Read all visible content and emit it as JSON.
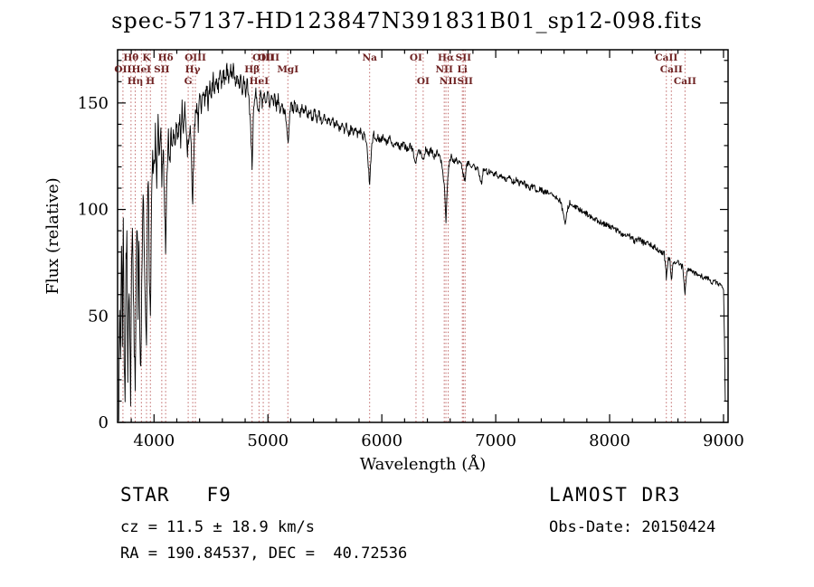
{
  "annotations": {
    "class_label": "STAR   F9",
    "cz": "cz = 11.5 ± 18.9 km/s",
    "coords": "RA = 190.84537, DEC =  40.72536",
    "survey": "LAMOST DR3",
    "obs_date": "Obs-Date: 20150424"
  },
  "chart_data": {
    "type": "line",
    "title": "spec-57137-HD123847N391831B01_sp12-098.fits",
    "xlabel": "Wavelength (Å)",
    "ylabel": "Flux (relative)",
    "xlim": [
      3680,
      9040
    ],
    "ylim": [
      0,
      175
    ],
    "xticks": [
      4000,
      5000,
      6000,
      7000,
      8000,
      9000
    ],
    "yticks": [
      0,
      50,
      100,
      150
    ],
    "x_minor_step": 200,
    "y_minor_step": 10,
    "grid": false,
    "legend": "none",
    "line_color": "#000000",
    "marker_color": "#c06868",
    "marker_label_color": "#6e2222",
    "spectral_lines": [
      {
        "wl": 3727,
        "label": "OII",
        "row": 1
      },
      {
        "wl": 3798,
        "label": "Hθ",
        "row": 0
      },
      {
        "wl": 3835,
        "label": "Hη",
        "row": 2
      },
      {
        "wl": 3889,
        "label": "HeI",
        "row": 1
      },
      {
        "wl": 3934,
        "label": "K",
        "row": 0
      },
      {
        "wl": 3968,
        "label": "H",
        "row": 2
      },
      {
        "wl": 4068,
        "label": "SII",
        "row": 1
      },
      {
        "wl": 4102,
        "label": "Hδ",
        "row": 0
      },
      {
        "wl": 4300,
        "label": "G",
        "row": 2
      },
      {
        "wl": 4340,
        "label": "Hγ",
        "row": 1
      },
      {
        "wl": 4363,
        "label": "OIII",
        "row": 0
      },
      {
        "wl": 4861,
        "label": "Hβ",
        "row": 1
      },
      {
        "wl": 4922,
        "label": "HeI",
        "row": 2
      },
      {
        "wl": 4959,
        "label": "OIII",
        "row": 0
      },
      {
        "wl": 5007,
        "label": "OIII",
        "row": 0
      },
      {
        "wl": 5175,
        "label": "MgI",
        "row": 1
      },
      {
        "wl": 5893,
        "label": "Na",
        "row": 0
      },
      {
        "wl": 6300,
        "label": "OI",
        "row": 0
      },
      {
        "wl": 6363,
        "label": "OI",
        "row": 2
      },
      {
        "wl": 6548,
        "label": "NII",
        "row": 1
      },
      {
        "wl": 6563,
        "label": "Hα",
        "row": 0
      },
      {
        "wl": 6583,
        "label": "NII",
        "row": 2
      },
      {
        "wl": 6707,
        "label": "Li",
        "row": 1
      },
      {
        "wl": 6716,
        "label": "SII",
        "row": 0
      },
      {
        "wl": 6731,
        "label": "SII",
        "row": 2
      },
      {
        "wl": 8498,
        "label": "CaII",
        "row": 0
      },
      {
        "wl": 8542,
        "label": "CaII",
        "row": 1
      },
      {
        "wl": 8662,
        "label": "CaII",
        "row": 2
      }
    ],
    "noise_profile": [
      [
        3690,
        9
      ],
      [
        3960,
        7
      ],
      [
        4300,
        5
      ],
      [
        4700,
        3
      ],
      [
        5300,
        2.2
      ],
      [
        6000,
        1.8
      ],
      [
        6800,
        1.4
      ],
      [
        7600,
        1.3
      ],
      [
        8300,
        1.5
      ],
      [
        9015,
        1.2
      ]
    ],
    "spectrum": [
      [
        3690,
        8
      ],
      [
        3698,
        55
      ],
      [
        3706,
        25
      ],
      [
        3714,
        90
      ],
      [
        3722,
        40
      ],
      [
        3730,
        100
      ],
      [
        3738,
        30
      ],
      [
        3746,
        10
      ],
      [
        3754,
        75
      ],
      [
        3762,
        95
      ],
      [
        3770,
        20
      ],
      [
        3778,
        60
      ],
      [
        3786,
        45
      ],
      [
        3794,
        15
      ],
      [
        3802,
        70
      ],
      [
        3810,
        90
      ],
      [
        3818,
        60
      ],
      [
        3826,
        35
      ],
      [
        3835,
        12
      ],
      [
        3844,
        78
      ],
      [
        3852,
        95
      ],
      [
        3860,
        55
      ],
      [
        3868,
        85
      ],
      [
        3876,
        40
      ],
      [
        3884,
        20
      ],
      [
        3892,
        65
      ],
      [
        3900,
        95
      ],
      [
        3908,
        105
      ],
      [
        3916,
        75
      ],
      [
        3924,
        55
      ],
      [
        3934,
        40
      ],
      [
        3942,
        100
      ],
      [
        3950,
        115
      ],
      [
        3958,
        70
      ],
      [
        3968,
        45
      ],
      [
        3978,
        105
      ],
      [
        3988,
        125
      ],
      [
        4000,
        118
      ],
      [
        4012,
        135
      ],
      [
        4024,
        112
      ],
      [
        4036,
        140
      ],
      [
        4048,
        122
      ],
      [
        4060,
        132
      ],
      [
        4068,
        115
      ],
      [
        4080,
        128
      ],
      [
        4090,
        110
      ],
      [
        4102,
        78
      ],
      [
        4114,
        118
      ],
      [
        4126,
        135
      ],
      [
        4138,
        122
      ],
      [
        4150,
        140
      ],
      [
        4162,
        126
      ],
      [
        4174,
        138
      ],
      [
        4186,
        128
      ],
      [
        4198,
        142
      ],
      [
        4210,
        132
      ],
      [
        4222,
        145
      ],
      [
        4234,
        134
      ],
      [
        4246,
        148
      ],
      [
        4258,
        136
      ],
      [
        4270,
        150
      ],
      [
        4282,
        140
      ],
      [
        4294,
        128
      ],
      [
        4306,
        135
      ],
      [
        4318,
        142
      ],
      [
        4330,
        120
      ],
      [
        4340,
        104
      ],
      [
        4352,
        132
      ],
      [
        4364,
        145
      ],
      [
        4376,
        150
      ],
      [
        4388,
        140
      ],
      [
        4400,
        152
      ],
      [
        4415,
        146
      ],
      [
        4430,
        156
      ],
      [
        4445,
        148
      ],
      [
        4460,
        158
      ],
      [
        4475,
        150
      ],
      [
        4490,
        160
      ],
      [
        4505,
        154
      ],
      [
        4520,
        162
      ],
      [
        4535,
        155
      ],
      [
        4550,
        163
      ],
      [
        4565,
        157
      ],
      [
        4580,
        164
      ],
      [
        4595,
        158
      ],
      [
        4610,
        165
      ],
      [
        4625,
        159
      ],
      [
        4640,
        167
      ],
      [
        4655,
        161
      ],
      [
        4670,
        168
      ],
      [
        4685,
        162
      ],
      [
        4700,
        167
      ],
      [
        4715,
        158
      ],
      [
        4730,
        164
      ],
      [
        4745,
        157
      ],
      [
        4760,
        163
      ],
      [
        4775,
        156
      ],
      [
        4790,
        162
      ],
      [
        4805,
        155
      ],
      [
        4820,
        160
      ],
      [
        4835,
        150
      ],
      [
        4848,
        140
      ],
      [
        4861,
        118
      ],
      [
        4875,
        148
      ],
      [
        4890,
        156
      ],
      [
        4905,
        150
      ],
      [
        4922,
        144
      ],
      [
        4935,
        154
      ],
      [
        4950,
        149
      ],
      [
        4965,
        156
      ],
      [
        4980,
        151
      ],
      [
        5000,
        155
      ],
      [
        5015,
        148
      ],
      [
        5030,
        154
      ],
      [
        5045,
        149
      ],
      [
        5060,
        153
      ],
      [
        5075,
        148
      ],
      [
        5090,
        152
      ],
      [
        5105,
        147
      ],
      [
        5120,
        150
      ],
      [
        5135,
        145
      ],
      [
        5150,
        147
      ],
      [
        5165,
        138
      ],
      [
        5178,
        132
      ],
      [
        5192,
        146
      ],
      [
        5206,
        150
      ],
      [
        5220,
        146
      ],
      [
        5235,
        150
      ],
      [
        5250,
        146
      ],
      [
        5265,
        149
      ],
      [
        5280,
        144
      ],
      [
        5295,
        148
      ],
      [
        5310,
        145
      ],
      [
        5330,
        148
      ],
      [
        5350,
        144
      ],
      [
        5370,
        147
      ],
      [
        5390,
        143
      ],
      [
        5410,
        146
      ],
      [
        5430,
        142
      ],
      [
        5450,
        145
      ],
      [
        5470,
        141
      ],
      [
        5490,
        144
      ],
      [
        5510,
        141
      ],
      [
        5530,
        143
      ],
      [
        5550,
        140
      ],
      [
        5570,
        142
      ],
      [
        5590,
        139
      ],
      [
        5610,
        141
      ],
      [
        5630,
        138
      ],
      [
        5650,
        140
      ],
      [
        5670,
        137
      ],
      [
        5690,
        139
      ],
      [
        5710,
        136
      ],
      [
        5730,
        138
      ],
      [
        5750,
        136
      ],
      [
        5770,
        137
      ],
      [
        5790,
        135
      ],
      [
        5810,
        137
      ],
      [
        5830,
        134
      ],
      [
        5850,
        136
      ],
      [
        5870,
        129
      ],
      [
        5893,
        112
      ],
      [
        5912,
        132
      ],
      [
        5930,
        135
      ],
      [
        5950,
        133
      ],
      [
        5970,
        134
      ],
      [
        5990,
        132
      ],
      [
        6010,
        134
      ],
      [
        6040,
        131
      ],
      [
        6070,
        133
      ],
      [
        6100,
        130
      ],
      [
        6130,
        132
      ],
      [
        6160,
        129
      ],
      [
        6190,
        131
      ],
      [
        6220,
        128
      ],
      [
        6250,
        130
      ],
      [
        6280,
        126
      ],
      [
        6300,
        122
      ],
      [
        6320,
        128
      ],
      [
        6340,
        127
      ],
      [
        6363,
        124
      ],
      [
        6385,
        128
      ],
      [
        6410,
        126
      ],
      [
        6435,
        128
      ],
      [
        6460,
        125
      ],
      [
        6485,
        127
      ],
      [
        6510,
        124
      ],
      [
        6530,
        120
      ],
      [
        6548,
        112
      ],
      [
        6563,
        95
      ],
      [
        6580,
        116
      ],
      [
        6595,
        123
      ],
      [
        6610,
        125
      ],
      [
        6630,
        122
      ],
      [
        6650,
        124
      ],
      [
        6670,
        121
      ],
      [
        6690,
        123
      ],
      [
        6707,
        118
      ],
      [
        6716,
        116
      ],
      [
        6731,
        114
      ],
      [
        6745,
        121
      ],
      [
        6760,
        122
      ],
      [
        6780,
        120
      ],
      [
        6800,
        121
      ],
      [
        6820,
        119
      ],
      [
        6840,
        120
      ],
      [
        6860,
        115
      ],
      [
        6875,
        112
      ],
      [
        6890,
        118
      ],
      [
        6910,
        119
      ],
      [
        6930,
        117
      ],
      [
        6950,
        118
      ],
      [
        6975,
        116
      ],
      [
        7000,
        117
      ],
      [
        7030,
        115
      ],
      [
        7060,
        116
      ],
      [
        7090,
        114
      ],
      [
        7120,
        115
      ],
      [
        7150,
        113
      ],
      [
        7180,
        114
      ],
      [
        7210,
        112
      ],
      [
        7240,
        113
      ],
      [
        7270,
        111
      ],
      [
        7300,
        110
      ],
      [
        7330,
        111
      ],
      [
        7360,
        109
      ],
      [
        7390,
        110
      ],
      [
        7420,
        108
      ],
      [
        7450,
        108
      ],
      [
        7480,
        107
      ],
      [
        7510,
        106
      ],
      [
        7540,
        105
      ],
      [
        7570,
        104
      ],
      [
        7594,
        97
      ],
      [
        7610,
        94
      ],
      [
        7630,
        100
      ],
      [
        7650,
        103
      ],
      [
        7680,
        102
      ],
      [
        7710,
        101
      ],
      [
        7740,
        100
      ],
      [
        7770,
        99
      ],
      [
        7800,
        98
      ],
      [
        7830,
        97
      ],
      [
        7860,
        96
      ],
      [
        7890,
        95
      ],
      [
        7920,
        94
      ],
      [
        7950,
        93
      ],
      [
        7980,
        93
      ],
      [
        8010,
        92
      ],
      [
        8040,
        91
      ],
      [
        8070,
        90
      ],
      [
        8100,
        89
      ],
      [
        8130,
        88
      ],
      [
        8160,
        88
      ],
      [
        8190,
        87
      ],
      [
        8220,
        85
      ],
      [
        8250,
        86
      ],
      [
        8280,
        85
      ],
      [
        8310,
        84
      ],
      [
        8340,
        84
      ],
      [
        8370,
        83
      ],
      [
        8400,
        82
      ],
      [
        8430,
        81
      ],
      [
        8460,
        80
      ],
      [
        8480,
        79
      ],
      [
        8498,
        68
      ],
      [
        8515,
        77
      ],
      [
        8530,
        76
      ],
      [
        8542,
        66
      ],
      [
        8558,
        76
      ],
      [
        8575,
        75
      ],
      [
        8600,
        75
      ],
      [
        8620,
        74
      ],
      [
        8640,
        73
      ],
      [
        8662,
        61
      ],
      [
        8680,
        72
      ],
      [
        8700,
        72
      ],
      [
        8725,
        71
      ],
      [
        8750,
        70
      ],
      [
        8775,
        70
      ],
      [
        8800,
        69
      ],
      [
        8825,
        68
      ],
      [
        8850,
        68
      ],
      [
        8875,
        67
      ],
      [
        8900,
        66
      ],
      [
        8925,
        66
      ],
      [
        8950,
        65
      ],
      [
        8975,
        64
      ],
      [
        9000,
        62
      ],
      [
        9008,
        40
      ],
      [
        9015,
        10
      ]
    ]
  }
}
